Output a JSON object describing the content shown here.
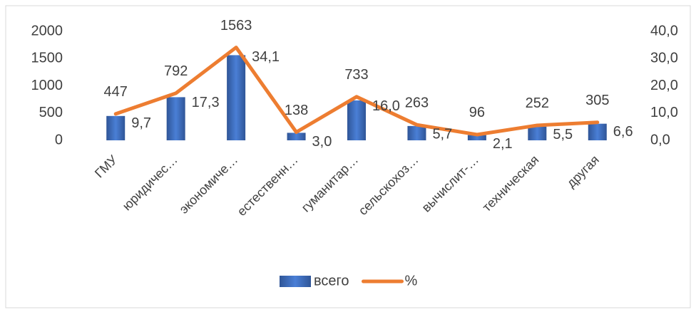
{
  "chart_data": {
    "type": "bar",
    "categories": [
      "ГМУ",
      "юридичес…",
      "экономиче…",
      "естественн…",
      "гуманитар…",
      "сельскохоз…",
      "вычислит-…",
      "техническая",
      "другая"
    ],
    "series": [
      {
        "name": "всего",
        "type": "bar",
        "color": "#4472c4",
        "values": [
          447,
          792,
          1563,
          138,
          733,
          263,
          96,
          252,
          305
        ]
      },
      {
        "name": "%",
        "type": "line",
        "axis": "y2",
        "color": "#ed7d31",
        "values": [
          9.7,
          17.3,
          34.1,
          3.0,
          16.0,
          5.7,
          2.1,
          5.5,
          6.6
        ],
        "value_labels": [
          "9,7",
          "17,3",
          "34,1",
          "3,0",
          "16,0",
          "5,7",
          "2,1",
          "5,5",
          "6,6"
        ]
      }
    ],
    "ylim": [
      0,
      2000
    ],
    "yticks": [
      0,
      500,
      1000,
      1500,
      2000
    ],
    "y2lim": [
      0,
      40
    ],
    "y2ticks": [
      {
        "value": 0,
        "label": "0,0"
      },
      {
        "value": 10,
        "label": "10,0"
      },
      {
        "value": 20,
        "label": "20,0"
      },
      {
        "value": 30,
        "label": "30,0"
      },
      {
        "value": 40,
        "label": "40,0"
      }
    ],
    "legend": "bottom"
  }
}
